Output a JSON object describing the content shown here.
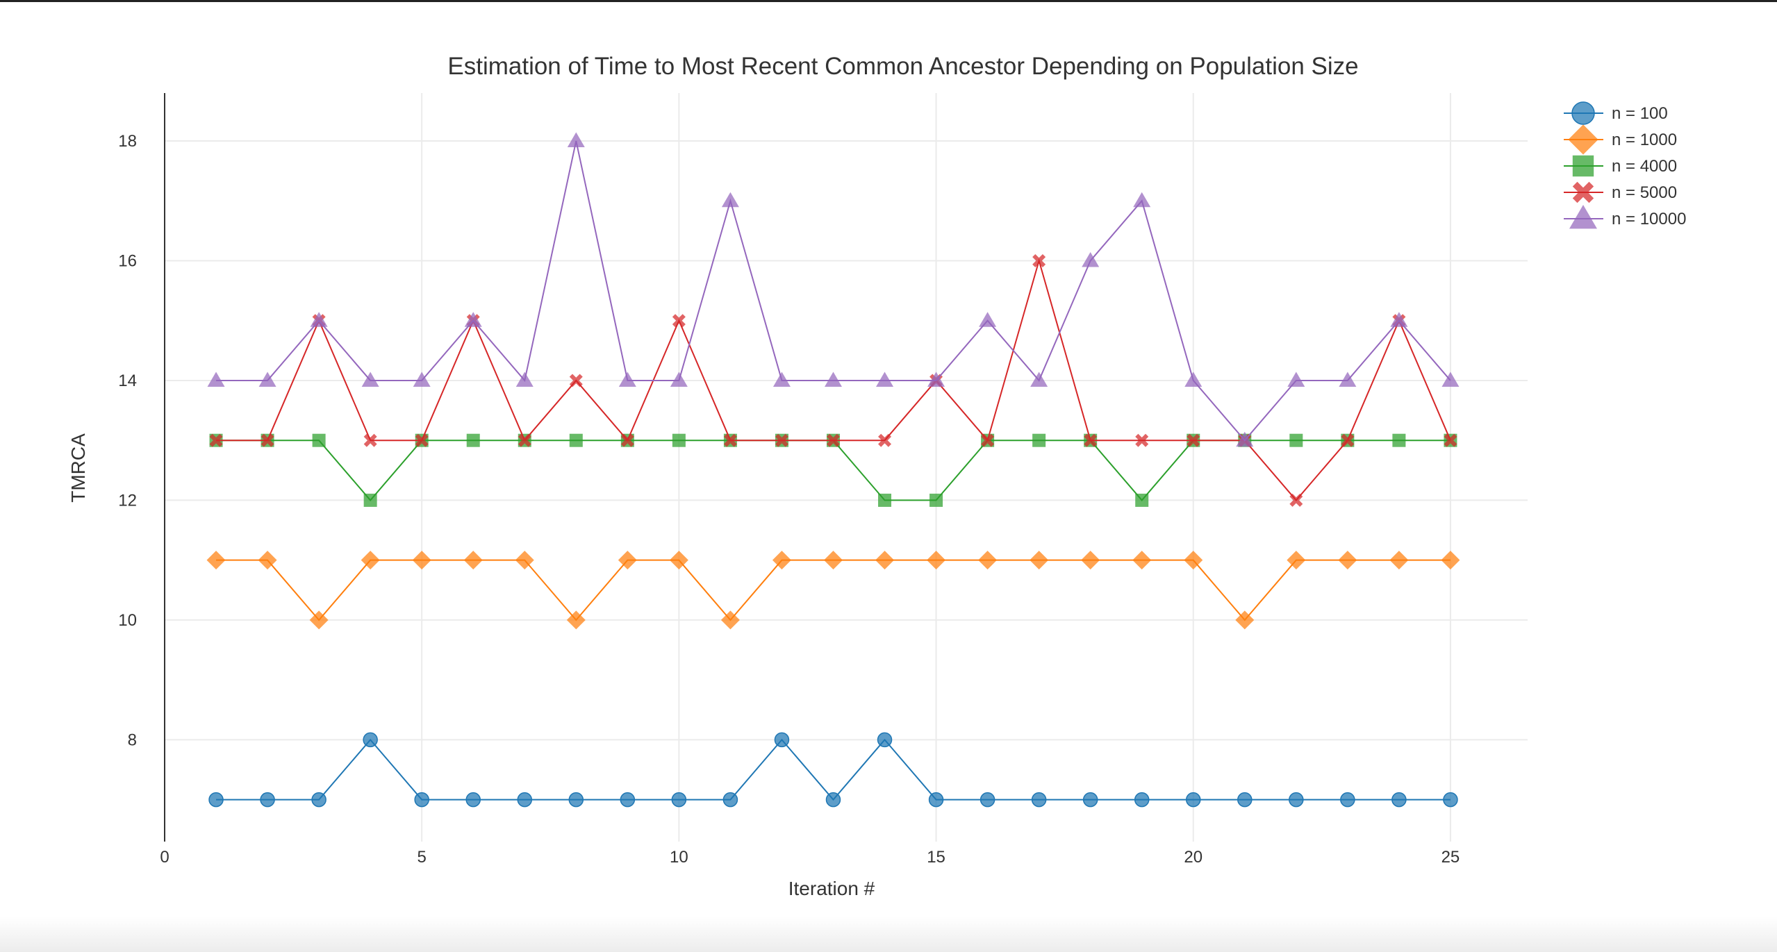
{
  "chart_data": {
    "type": "line",
    "title": "Estimation of Time to Most Recent Common Ancestor Depending on Population Size",
    "xlabel": "Iteration #",
    "ylabel": "TMRCA",
    "xlim": [
      0,
      26.5
    ],
    "ylim": [
      6.3,
      18.8
    ],
    "xticks": [
      0,
      5,
      10,
      15,
      20,
      25
    ],
    "yticks": [
      8,
      10,
      12,
      14,
      16,
      18
    ],
    "grid": true,
    "legend_position": "top-right",
    "x": [
      1,
      2,
      3,
      4,
      5,
      6,
      7,
      8,
      9,
      10,
      11,
      12,
      13,
      14,
      15,
      16,
      17,
      18,
      19,
      20,
      21,
      22,
      23,
      24,
      25
    ],
    "series": [
      {
        "name": "n = 100",
        "color": "#1f77b4",
        "marker": "circle",
        "values": [
          7,
          7,
          7,
          8,
          7,
          7,
          7,
          7,
          7,
          7,
          7,
          8,
          7,
          8,
          7,
          7,
          7,
          7,
          7,
          7,
          7,
          7,
          7,
          7,
          7
        ]
      },
      {
        "name": "n = 1000",
        "color": "#ff7f0e",
        "marker": "diamond",
        "values": [
          11,
          11,
          10,
          11,
          11,
          11,
          11,
          10,
          11,
          11,
          10,
          11,
          11,
          11,
          11,
          11,
          11,
          11,
          11,
          11,
          10,
          11,
          11,
          11,
          11
        ]
      },
      {
        "name": "n = 4000",
        "color": "#2ca02c",
        "marker": "square",
        "values": [
          13,
          13,
          13,
          12,
          13,
          13,
          13,
          13,
          13,
          13,
          13,
          13,
          13,
          12,
          12,
          13,
          13,
          13,
          12,
          13,
          13,
          13,
          13,
          13,
          13
        ]
      },
      {
        "name": "n = 5000",
        "color": "#d62728",
        "marker": "x",
        "values": [
          13,
          13,
          15,
          13,
          13,
          15,
          13,
          14,
          13,
          15,
          13,
          13,
          13,
          13,
          14,
          13,
          16,
          13,
          13,
          13,
          13,
          12,
          13,
          15,
          13
        ]
      },
      {
        "name": "n = 10000",
        "color": "#9467bd",
        "marker": "triangle-up",
        "values": [
          14,
          14,
          15,
          14,
          14,
          15,
          14,
          18,
          14,
          14,
          17,
          14,
          14,
          14,
          14,
          15,
          14,
          16,
          17,
          14,
          13,
          14,
          14,
          15,
          14
        ]
      }
    ]
  }
}
